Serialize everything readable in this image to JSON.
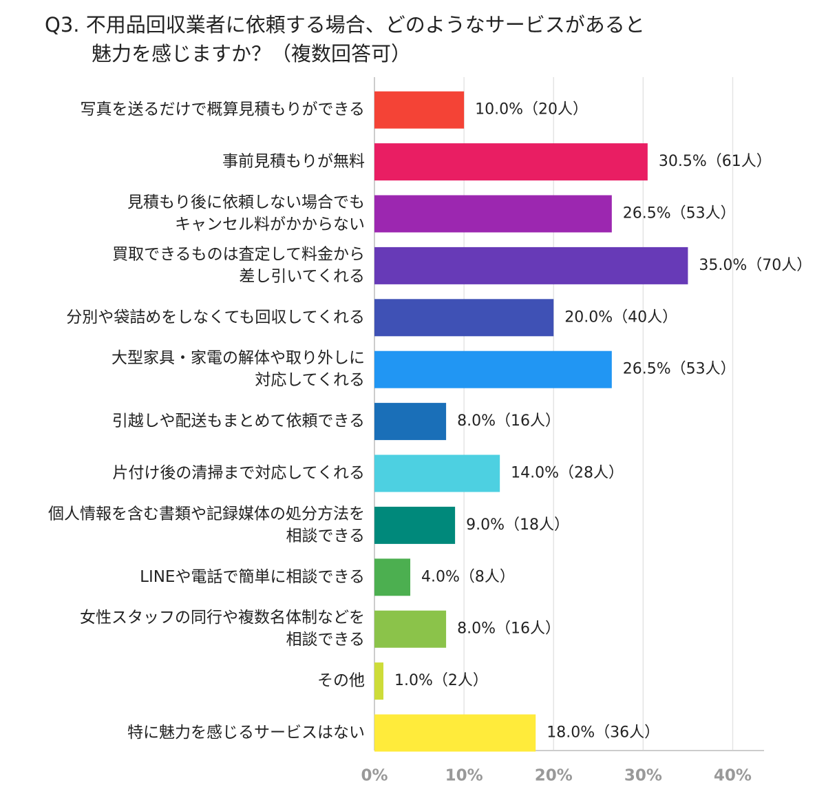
{
  "chart_data": {
    "type": "bar",
    "orientation": "horizontal",
    "title": [
      "Q3. 不用品回収業者に依頼する場合、どのようなサービスがあると",
      "魅力を感じますか？（複数回答可）"
    ],
    "categories": [
      [
        "写真を送るだけで概算見積もりができる"
      ],
      [
        "事前見積もりが無料"
      ],
      [
        "見積もり後に依頼しない場合でも",
        "キャンセル料がかからない"
      ],
      [
        "買取できるものは査定して料金から",
        "差し引いてくれる"
      ],
      [
        "分別や袋詰めをしなくても回収してくれる"
      ],
      [
        "大型家具・家電の解体や取り外しに",
        "対応してくれる"
      ],
      [
        "引越しや配送もまとめて依頼できる"
      ],
      [
        "片付け後の清掃まで対応してくれる"
      ],
      [
        "個人情報を含む書類や記録媒体の処分方法を",
        "相談できる"
      ],
      [
        "LINEや電話で簡単に相談できる"
      ],
      [
        "女性スタッフの同行や複数名体制などを",
        "相談できる"
      ],
      [
        "その他"
      ],
      [
        "特に魅力を感じるサービスはない"
      ]
    ],
    "values": [
      10.0,
      30.5,
      26.5,
      35.0,
      20.0,
      26.5,
      8.0,
      14.0,
      9.0,
      4.0,
      8.0,
      1.0,
      18.0
    ],
    "value_labels": [
      "10.0%（20人）",
      "30.5%（61人）",
      "26.5%（53人）",
      "35.0%（70人）",
      "20.0%（40人）",
      "26.5%（53人）",
      "8.0%（16人）",
      "14.0%（28人）",
      "9.0%（18人）",
      "4.0%（8人）",
      "8.0%（16人）",
      "1.0%（2人）",
      "18.0%（36人）"
    ],
    "colors": [
      "#f44336",
      "#e91e63",
      "#9c27b0",
      "#673ab7",
      "#3f51b5",
      "#2196f3",
      "#1a6fb8",
      "#4dd0e1",
      "#00897b",
      "#4caf50",
      "#8bc34a",
      "#cddc39",
      "#ffeb3b"
    ],
    "xlim": [
      0,
      43.5
    ],
    "xticks": [
      {
        "value": 0,
        "label": "0%"
      },
      {
        "value": 10,
        "label": "10%"
      },
      {
        "value": 20,
        "label": "20%"
      },
      {
        "value": 30,
        "label": "30%"
      },
      {
        "value": 40,
        "label": "40%"
      }
    ],
    "grid": true
  }
}
